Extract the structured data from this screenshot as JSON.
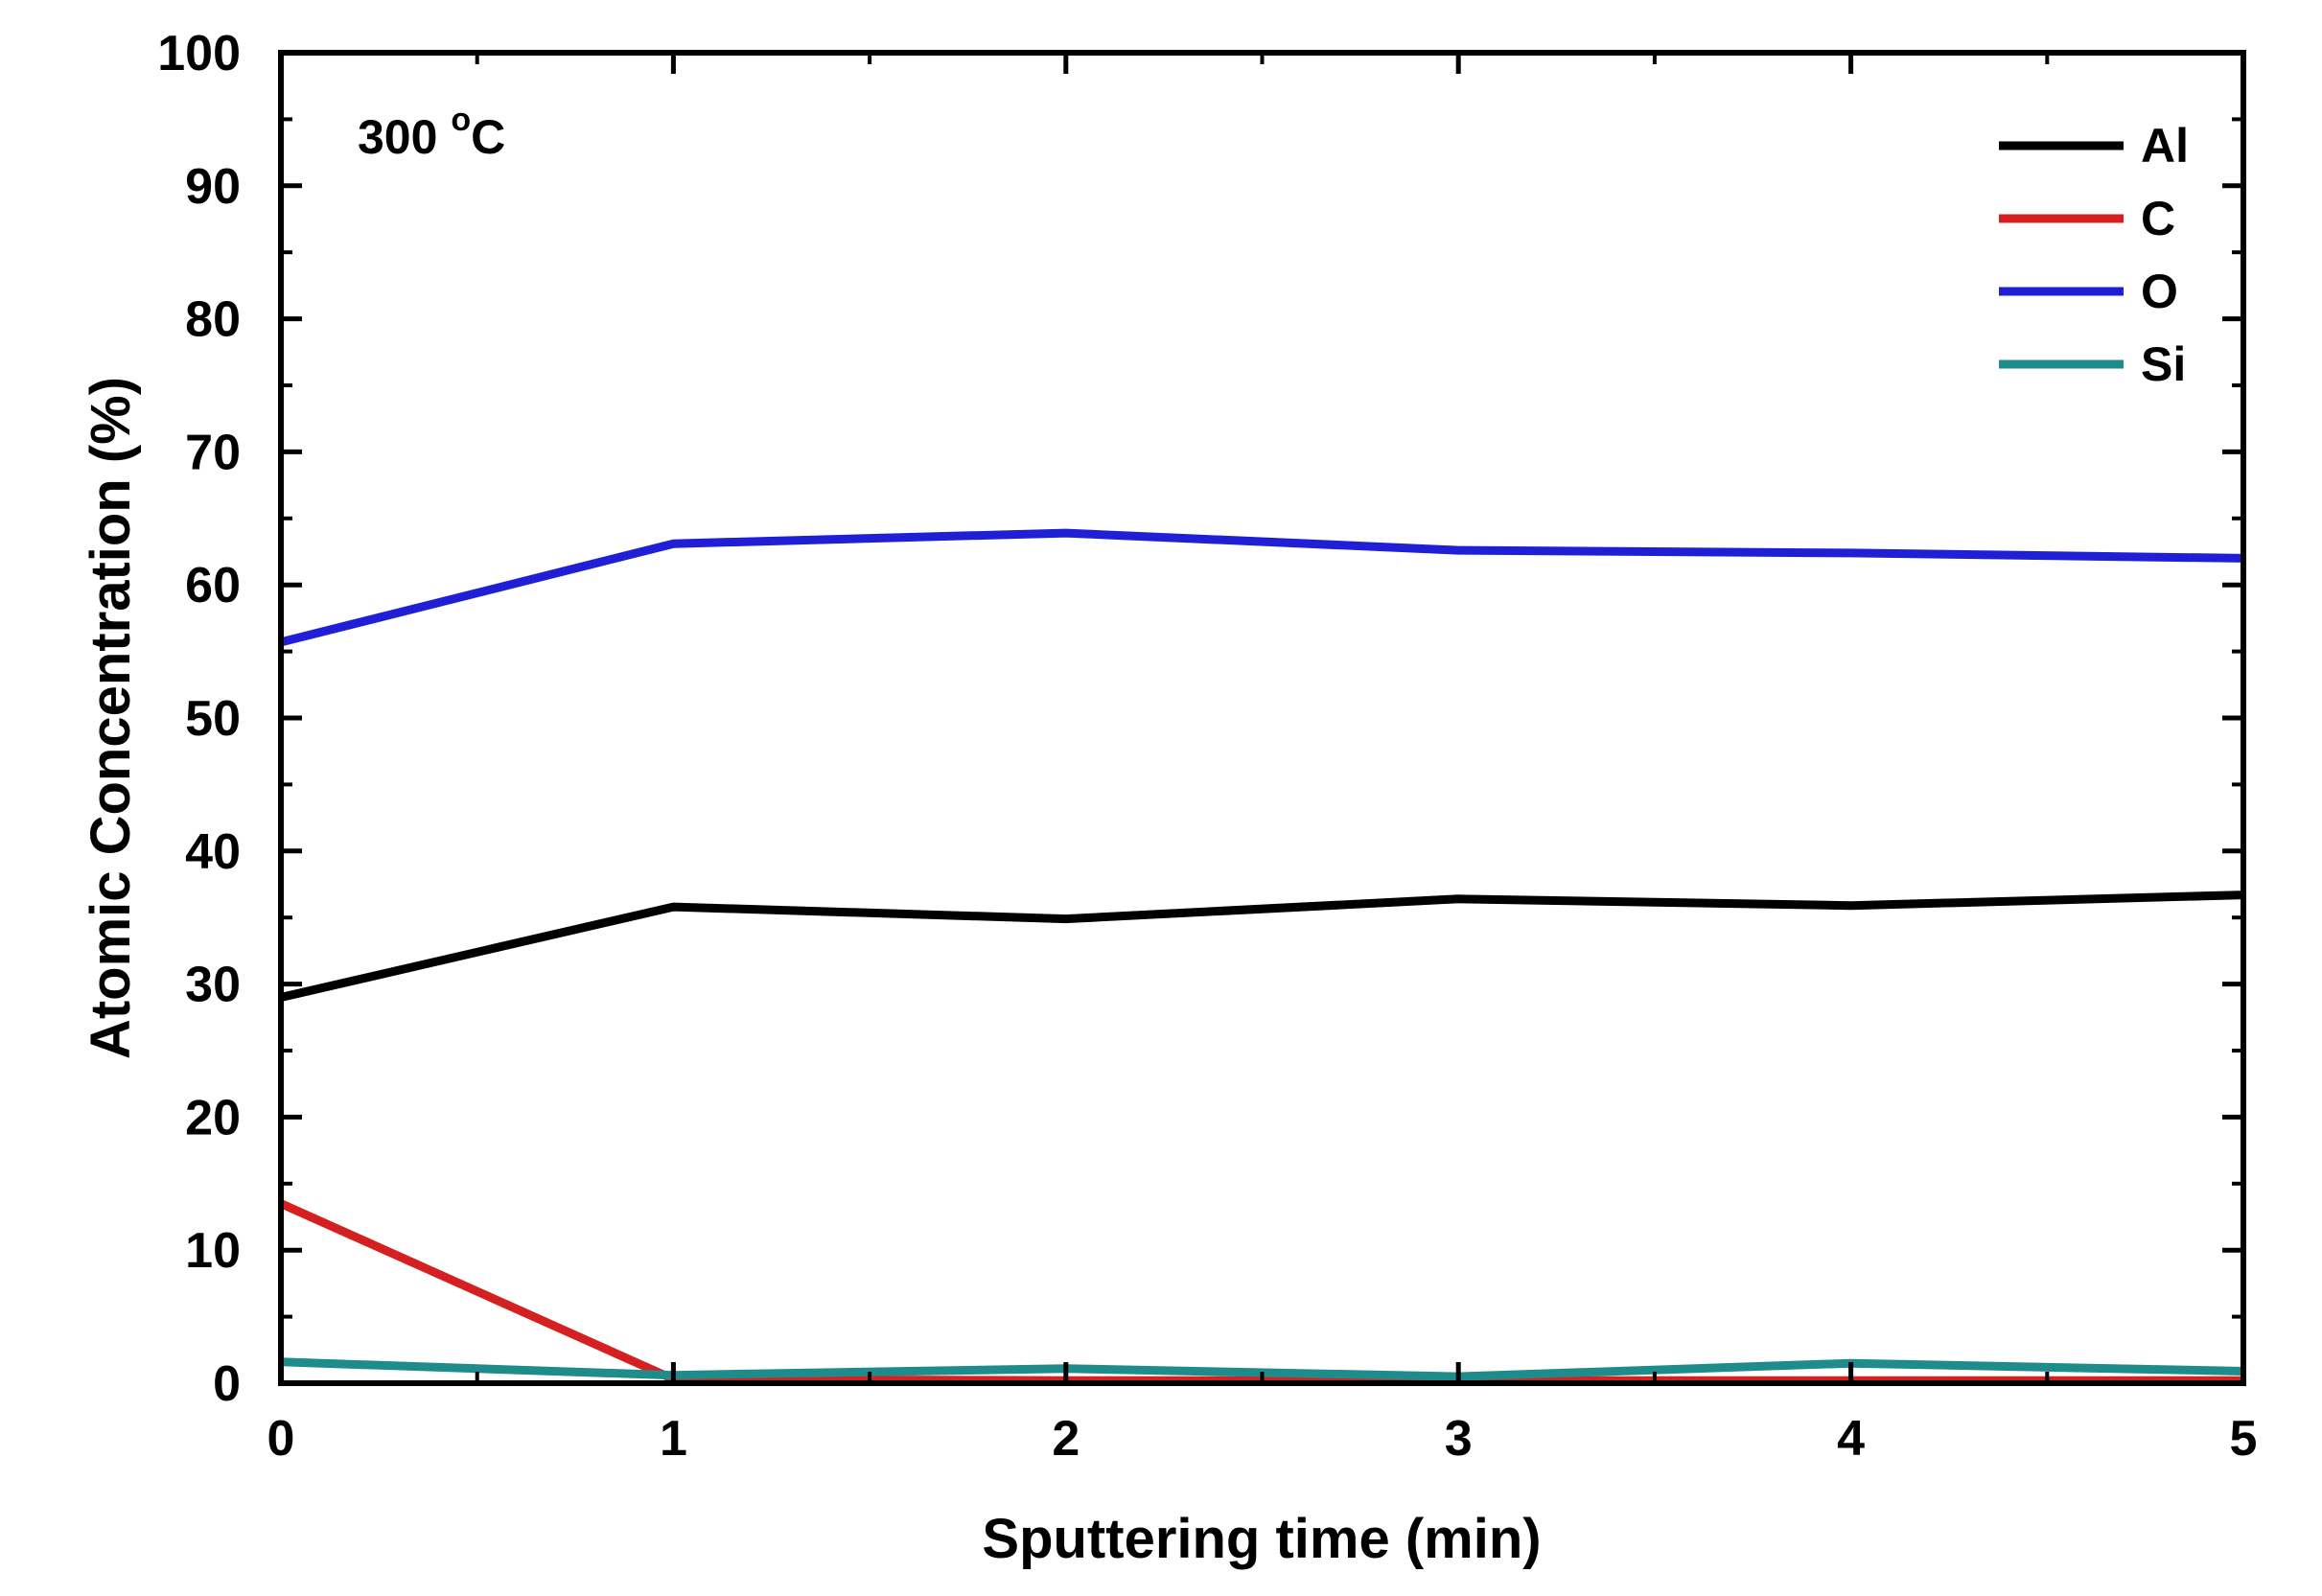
{
  "chart_data": {
    "type": "line",
    "title": "",
    "xlabel": "Sputtering time (min)",
    "ylabel": "Atomic Concentration (%)",
    "xlim": [
      0,
      5
    ],
    "ylim": [
      0,
      100
    ],
    "x_ticks": [
      0,
      1,
      2,
      3,
      4,
      5
    ],
    "y_ticks": [
      0,
      10,
      20,
      30,
      40,
      50,
      60,
      70,
      80,
      90,
      100
    ],
    "x": [
      0,
      1,
      2,
      3,
      4,
      5
    ],
    "series": [
      {
        "name": "Al",
        "color": "#000000",
        "values": [
          29.0,
          35.8,
          34.9,
          36.4,
          35.9,
          36.7
        ]
      },
      {
        "name": "C",
        "color": "#d42020",
        "values": [
          13.5,
          0.3,
          0.2,
          0.2,
          0.2,
          0.2
        ]
      },
      {
        "name": "O",
        "color": "#1f1fd6",
        "values": [
          55.7,
          63.1,
          63.9,
          62.6,
          62.4,
          62.0
        ]
      },
      {
        "name": "Si",
        "color": "#1f8c8c",
        "values": [
          1.6,
          0.6,
          1.1,
          0.5,
          1.5,
          0.9
        ]
      }
    ],
    "legend_position": "top-right",
    "annotation": {
      "text": "300 ",
      "superscript": "o",
      "unit": "C"
    }
  }
}
